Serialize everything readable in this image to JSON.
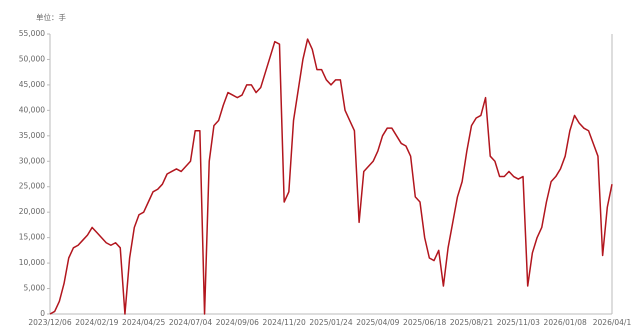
{
  "chart_data": {
    "type": "line",
    "subtitle": "单位：手",
    "categories": [
      "2023/12/06",
      null,
      null,
      null,
      null,
      null,
      null,
      null,
      null,
      null,
      "2024/02/19",
      null,
      null,
      null,
      null,
      null,
      null,
      null,
      null,
      null,
      "2024/04/25",
      null,
      null,
      null,
      null,
      null,
      null,
      null,
      null,
      null,
      "2024/07/04",
      null,
      null,
      null,
      null,
      null,
      null,
      null,
      null,
      null,
      "2024/09/06",
      null,
      null,
      null,
      null,
      null,
      null,
      null,
      null,
      null,
      "2024/11/20",
      null,
      null,
      null,
      null,
      null,
      null,
      null,
      null,
      null,
      "2025/01/24",
      null,
      null,
      null,
      null,
      null,
      null,
      null,
      null,
      null,
      "2025/04/09",
      null,
      null,
      null,
      null,
      null,
      null,
      null,
      null,
      null,
      "2025/06/18",
      null,
      null,
      null,
      null,
      null,
      null,
      null,
      null,
      null,
      "2025/08/21",
      null,
      null,
      null,
      null,
      null,
      null,
      null,
      null,
      null,
      "2025/11/03",
      null,
      null,
      null,
      null,
      null,
      null,
      null,
      null,
      null,
      "2026/01/08",
      null,
      null,
      null,
      null,
      null,
      null,
      null,
      null,
      null,
      "2026/04/1"
    ],
    "series": [
      {
        "color": "#b2161e",
        "values": [
          0,
          500,
          2500,
          6000,
          11000,
          13000,
          13500,
          14500,
          15500,
          17000,
          16000,
          15000,
          14000,
          13500,
          14000,
          13000,
          0,
          11000,
          17000,
          19500,
          20000,
          22000,
          24000,
          24500,
          25500,
          27500,
          28000,
          28500,
          28000,
          29000,
          30000,
          36000,
          36000,
          0,
          30000,
          37000,
          38000,
          41000,
          43500,
          43000,
          42500,
          43000,
          45000,
          45000,
          43500,
          44500,
          47500,
          50500,
          53500,
          53000,
          22000,
          24000,
          38000,
          44000,
          50000,
          54000,
          52000,
          48000,
          48000,
          46000,
          45000,
          46000,
          46000,
          40000,
          38000,
          36000,
          18000,
          28000,
          29000,
          30000,
          32000,
          35000,
          36500,
          36500,
          35000,
          33500,
          33000,
          31000,
          23000,
          22000,
          15000,
          11000,
          10500,
          12500,
          5500,
          13000,
          18000,
          23000,
          26000,
          32000,
          37000,
          38500,
          39000,
          42500,
          31000,
          30000,
          27000,
          27000,
          28000,
          27000,
          26500,
          27000,
          5500,
          12000,
          15000,
          17000,
          22000,
          26000,
          27000,
          28500,
          31000,
          36000,
          39000,
          37500,
          36500,
          36000,
          33500,
          31000,
          11500,
          21000,
          25500
        ]
      }
    ],
    "ylim": [
      0,
      55000
    ],
    "yticks": [
      0,
      {
        "value": 5000,
        "label": "5,000"
      },
      {
        "value": 10000,
        "label": "10,000"
      },
      {
        "value": 15000,
        "label": "15,000"
      },
      {
        "value": 20000,
        "label": "20,000"
      },
      {
        "value": 25000,
        "label": "25,000"
      },
      {
        "value": 30000,
        "label": "30,000"
      },
      {
        "value": 35000,
        "label": "35,000"
      },
      {
        "value": 40000,
        "label": "40,000"
      },
      {
        "value": 45000,
        "label": "45,000"
      },
      {
        "value": 50000,
        "label": "50,000"
      },
      {
        "value": 55000,
        "label": "55,000"
      }
    ],
    "grid": false
  }
}
